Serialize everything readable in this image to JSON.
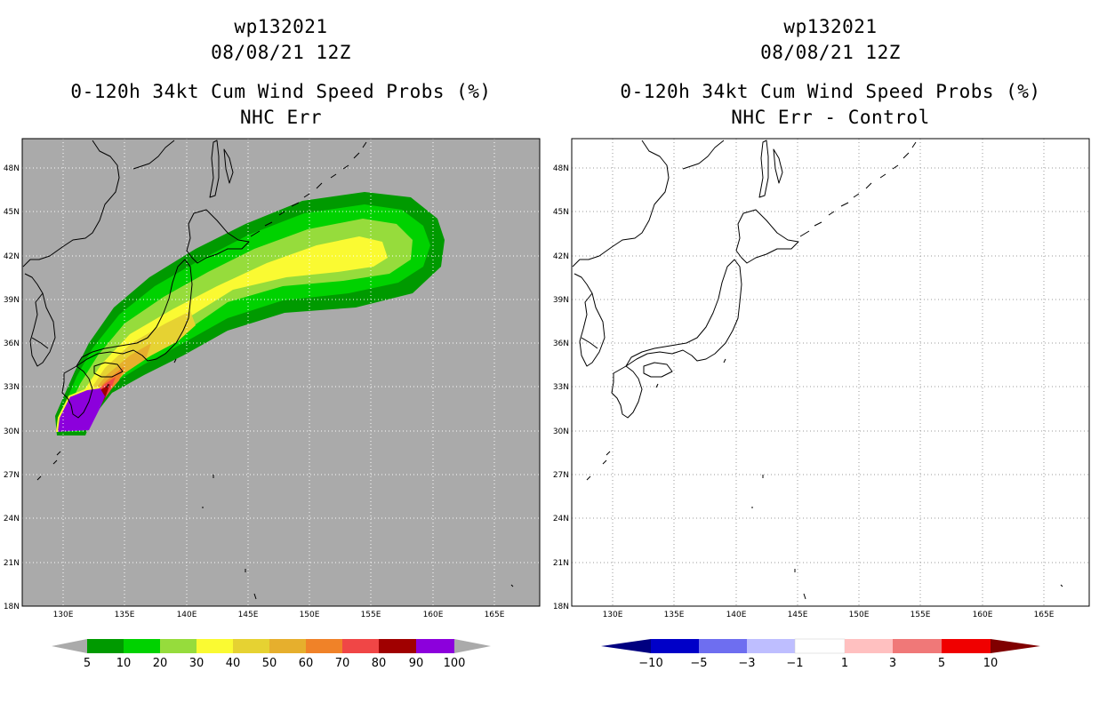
{
  "left_panel": {
    "storm_id": "wp132021",
    "datetime": "08/08/21 12Z",
    "title": "0-120h 34kt Cum Wind Speed Probs (%)",
    "subtitle": "NHC Err",
    "background_color": "#aaaaaa"
  },
  "right_panel": {
    "storm_id": "wp132021",
    "datetime": "08/08/21 12Z",
    "title": "0-120h 34kt Cum Wind Speed Probs (%)",
    "subtitle": "NHC Err - Control",
    "background_color": "#ffffff"
  },
  "axes": {
    "lon_ticks": [
      "130E",
      "135E",
      "140E",
      "145E",
      "150E",
      "155E",
      "160E",
      "165E"
    ],
    "lat_ticks": [
      "48N",
      "45N",
      "42N",
      "39N",
      "36N",
      "33N",
      "30N",
      "27N",
      "24N",
      "21N",
      "18N"
    ],
    "lon_range": [
      126.6,
      168.7
    ],
    "lat_range": [
      18,
      49.8
    ]
  },
  "left_colorbar": {
    "labels": [
      "5",
      "10",
      "20",
      "30",
      "40",
      "50",
      "60",
      "70",
      "80",
      "90",
      "100"
    ],
    "colors": [
      "#009a00",
      "#00d200",
      "#96dc3c",
      "#fafa32",
      "#e6d232",
      "#e6af2d",
      "#f08228",
      "#f04646",
      "#a00000",
      "#8c00dc"
    ],
    "arrow_color": "#aaaaaa"
  },
  "right_colorbar": {
    "labels": [
      "−10",
      "−5",
      "−3",
      "−1",
      "1",
      "3",
      "5",
      "10"
    ],
    "colors": [
      "#0000c8",
      "#6e6ef0",
      "#bebeff",
      "#ffffff",
      "#ffc0c0",
      "#f07878",
      "#f00000"
    ],
    "low_arrow_color": "#000080",
    "high_arrow_color": "#800000"
  }
}
